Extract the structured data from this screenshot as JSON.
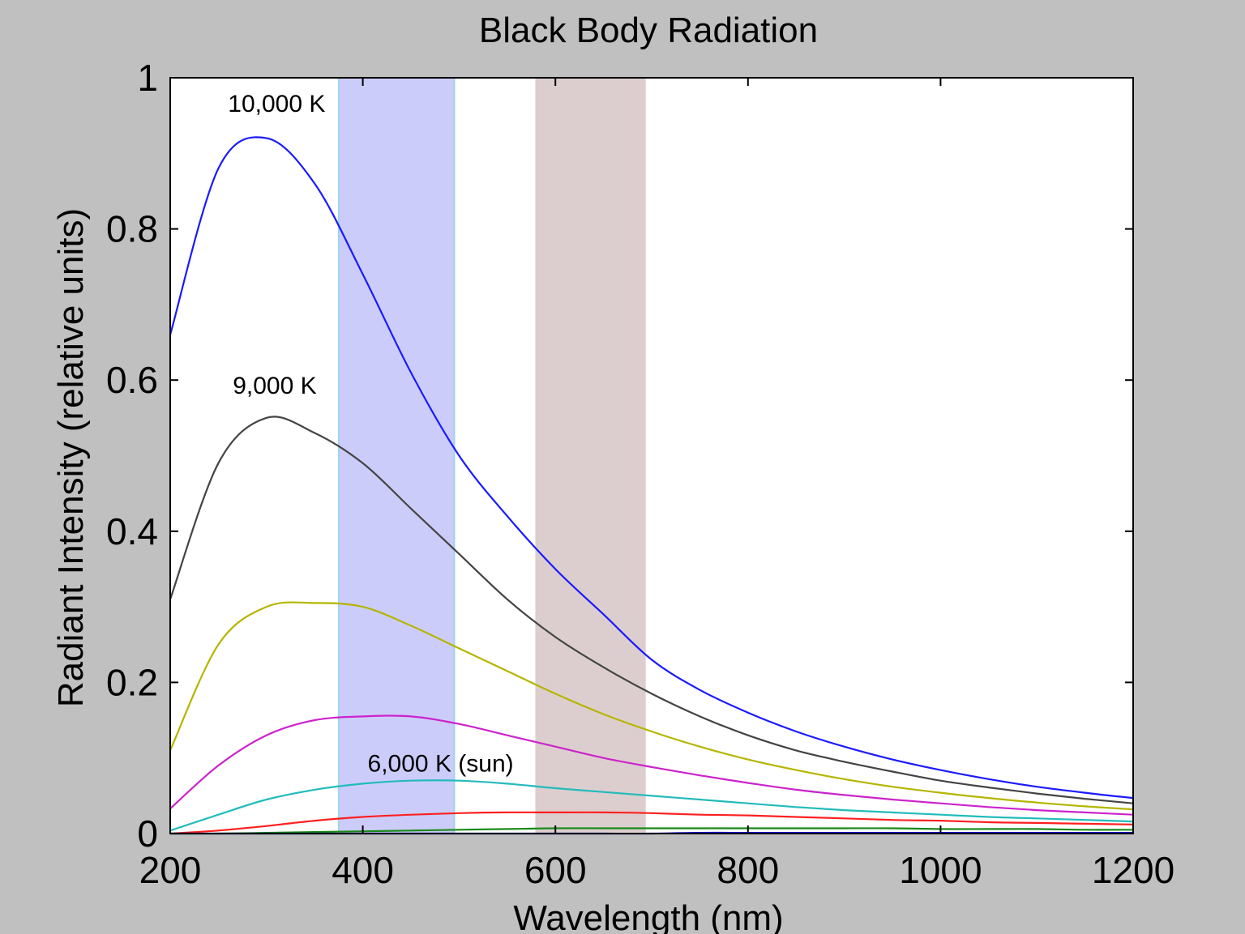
{
  "chart_data": {
    "type": "line",
    "title": "Black Body Radiation",
    "xlabel": "Wavelength (nm)",
    "ylabel": "Radiant Intensity (relative units)",
    "xlim": [
      200,
      1200
    ],
    "ylim": [
      0,
      1
    ],
    "xticks": [
      200,
      400,
      600,
      800,
      1000,
      1200
    ],
    "yticks": [
      0,
      0.2,
      0.4,
      0.6,
      0.8,
      1
    ],
    "xtick_labels": [
      "200",
      "400",
      "600",
      "800",
      "1000",
      "1200"
    ],
    "ytick_labels": [
      "0",
      "0.2",
      "0.4",
      "0.6",
      "0.8",
      "1"
    ],
    "grid": false,
    "bands": [
      {
        "x0": 375,
        "x1": 495,
        "color": "#ccccfa",
        "edge": "#9ed4f0"
      },
      {
        "x0": 580,
        "x1": 693,
        "color": "#dccece",
        "edge": "#dccece"
      }
    ],
    "x": [
      200,
      250,
      300,
      350,
      400,
      450,
      500,
      550,
      600,
      650,
      700,
      750,
      800,
      850,
      900,
      950,
      1000,
      1050,
      1100,
      1150,
      1200
    ],
    "series": [
      {
        "color": "#1a1aff",
        "values": [
          0.66,
          0.88,
          0.92,
          0.86,
          0.74,
          0.61,
          0.5,
          0.42,
          0.35,
          0.29,
          0.23,
          0.19,
          0.16,
          0.135,
          0.115,
          0.098,
          0.084,
          0.072,
          0.062,
          0.054,
          0.047
        ]
      },
      {
        "color": "#444444",
        "values": [
          0.31,
          0.49,
          0.55,
          0.53,
          0.49,
          0.43,
          0.37,
          0.31,
          0.26,
          0.22,
          0.185,
          0.155,
          0.13,
          0.11,
          0.095,
          0.082,
          0.07,
          0.061,
          0.053,
          0.046,
          0.04
        ]
      },
      {
        "color": "#b5b500",
        "values": [
          0.11,
          0.25,
          0.3,
          0.305,
          0.3,
          0.275,
          0.245,
          0.215,
          0.185,
          0.158,
          0.135,
          0.115,
          0.098,
          0.084,
          0.072,
          0.062,
          0.054,
          0.047,
          0.041,
          0.036,
          0.032
        ]
      },
      {
        "color": "#cc22cc",
        "values": [
          0.033,
          0.09,
          0.13,
          0.15,
          0.155,
          0.155,
          0.145,
          0.13,
          0.115,
          0.1,
          0.088,
          0.077,
          0.067,
          0.058,
          0.051,
          0.045,
          0.04,
          0.035,
          0.031,
          0.028,
          0.025
        ]
      },
      {
        "color": "#22bbbb",
        "values": [
          0.004,
          0.025,
          0.045,
          0.058,
          0.066,
          0.07,
          0.07,
          0.066,
          0.06,
          0.055,
          0.05,
          0.045,
          0.04,
          0.035,
          0.031,
          0.028,
          0.025,
          0.022,
          0.02,
          0.018,
          0.016
        ]
      },
      {
        "color": "#ff2020",
        "values": [
          0.0,
          0.004,
          0.01,
          0.017,
          0.022,
          0.025,
          0.027,
          0.028,
          0.028,
          0.028,
          0.027,
          0.025,
          0.024,
          0.022,
          0.02,
          0.018,
          0.017,
          0.015,
          0.014,
          0.013,
          0.012
        ]
      },
      {
        "color": "#1a8a1a",
        "values": [
          0.0,
          0.0,
          0.001,
          0.002,
          0.003,
          0.004,
          0.005,
          0.006,
          0.007,
          0.007,
          0.007,
          0.007,
          0.007,
          0.007,
          0.007,
          0.007,
          0.006,
          0.006,
          0.006,
          0.005,
          0.005
        ]
      },
      {
        "color": "#0000cc",
        "values": [
          0.0,
          0.0,
          0.0,
          0.0,
          0.0,
          0.0,
          0.0,
          0.0,
          0.0,
          0.0,
          0.0,
          0.001,
          0.001,
          0.001,
          0.001,
          0.001,
          0.001,
          0.001,
          0.001,
          0.001,
          0.001
        ]
      }
    ],
    "annotations": [
      {
        "text": "10,000 K",
        "x": 260,
        "y": 0.955
      },
      {
        "text": "9,000 K",
        "x": 265,
        "y": 0.582
      },
      {
        "text": "6,000 K (sun)",
        "x": 405,
        "y": 0.082
      }
    ]
  }
}
